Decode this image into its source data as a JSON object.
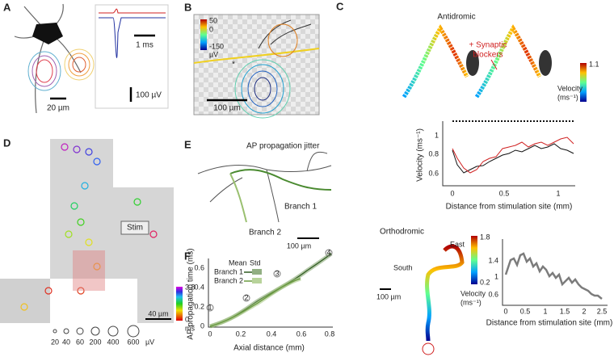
{
  "panel_a": {
    "label": "A",
    "time_scale": "1 ms",
    "voltage_scale": "100 µV",
    "length_scale": "20 µm"
  },
  "panel_b": {
    "label": "B",
    "colorbar_ticks": [
      "50",
      "0",
      "-150"
    ],
    "colorbar_unit": "µV",
    "marker": "*",
    "length_scale": "100 µm"
  },
  "panel_c": {
    "label": "C",
    "antidromic": {
      "title": "Antidromic",
      "annotation": [
        "+ Synaptic",
        "blockers"
      ],
      "colorbar_max": "1.1",
      "colorbar_title": "Velocity",
      "colorbar_unit": "(ms⁻¹)",
      "y_label": "Velocity (ms⁻¹)",
      "y_ticks": [
        "1",
        "0.8",
        "0.6"
      ],
      "x_ticks": [
        "0",
        "0.5",
        "1"
      ],
      "x_label": "Distance from stimulation site (mm)"
    },
    "orthodromic": {
      "title": "Orthodromic",
      "east": "East",
      "south": "South",
      "colorbar_max": "1.8",
      "colorbar_min": "0.2",
      "colorbar_title": "Velocity",
      "colorbar_unit": "(ms⁻¹)",
      "length_scale": "100 µm",
      "y_ticks": [
        "1.4",
        "1",
        "0.6"
      ],
      "x_ticks": [
        "0",
        "0.5",
        "1",
        "1.5",
        "2",
        "2.5"
      ],
      "x_label": "Distance from stimulation site (mm)"
    }
  },
  "panel_d": {
    "label": "D",
    "stim": "Stim",
    "colorbar_max": "3.8",
    "colorbar_min": "0",
    "colorbar_unit": "ms",
    "length_scale": "40 µm",
    "size_legend": [
      "20",
      "40",
      "60",
      "200",
      "400",
      "600"
    ],
    "size_unit": "µV"
  },
  "panel_e": {
    "label": "E",
    "title": "AP propagation jitter",
    "branch_1": "Branch 1",
    "branch_2": "Branch 2",
    "length_scale": "100 µm"
  },
  "panel_f": {
    "label": "F",
    "y_label": "AP propagation time (ms)",
    "x_label": "Axial distance (mm)",
    "y_ticks": [
      "0",
      "0.2",
      "0.4",
      "0.6"
    ],
    "x_ticks": [
      "0",
      "0.2",
      "0.4",
      "0.6",
      "0.8"
    ],
    "legend_headers": [
      "Mean",
      "Std"
    ],
    "legend_entries": [
      "Branch 1",
      "Branch 2"
    ],
    "markers": [
      "1",
      "2",
      "3",
      "4"
    ]
  }
}
